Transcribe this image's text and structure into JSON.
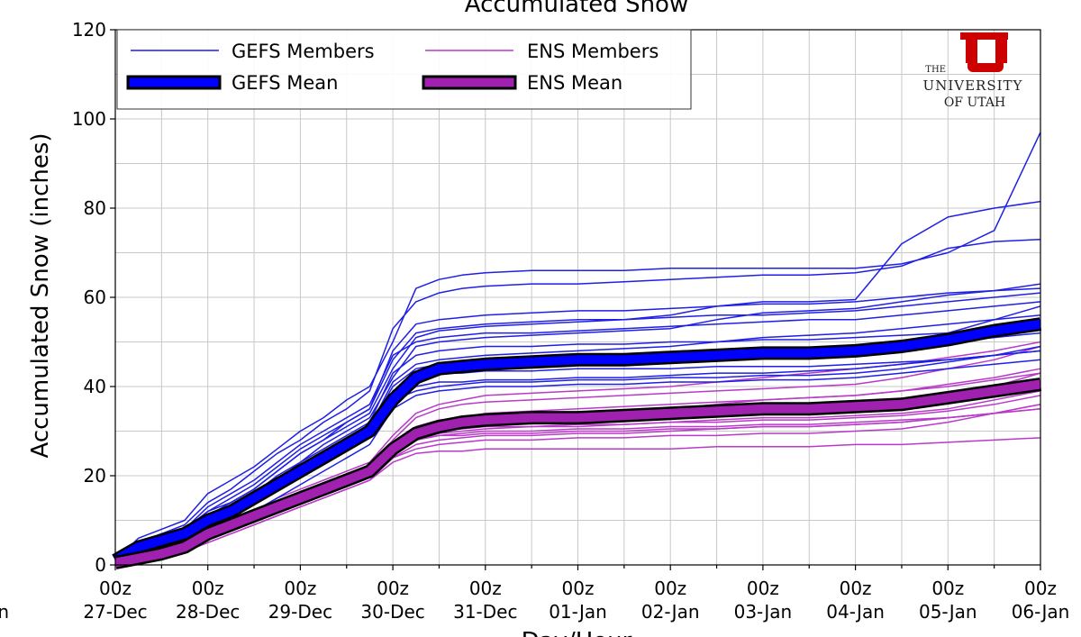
{
  "chart_data": {
    "type": "line",
    "title": "Accumulated Snow",
    "xlabel": "Day/Hour",
    "ylabel": "Accumulated Snow (inches)",
    "ylim": [
      0,
      120
    ],
    "xlim": [
      0,
      10
    ],
    "y_ticks": [
      "0",
      "20",
      "40",
      "60",
      "80",
      "100",
      "120"
    ],
    "x_tick_hour_labels": [
      "00z",
      "00z",
      "00z",
      "00z",
      "00z",
      "00z",
      "00z",
      "00z",
      "00z",
      "00z",
      "00z"
    ],
    "x_tick_date_labels": [
      "27-Dec",
      "28-Dec",
      "29-Dec",
      "30-Dec",
      "31-Dec",
      "01-Jan",
      "02-Jan",
      "03-Jan",
      "04-Jan",
      "05-Jan",
      "06-Jan"
    ],
    "left_cut_label": "n",
    "grid": true,
    "legend_position": "top-left",
    "legend": [
      {
        "label": "GEFS Members",
        "kind": "thin",
        "color": "#1f1fe6"
      },
      {
        "label": "ENS Members",
        "kind": "thin",
        "color": "#b93ac9"
      },
      {
        "label": "GEFS Mean",
        "kind": "thick",
        "color": "#0000ff"
      },
      {
        "label": "ENS Mean",
        "kind": "thick",
        "color": "#a020b0"
      }
    ],
    "x": [
      0,
      0.25,
      0.5,
      0.75,
      1,
      1.25,
      1.5,
      1.75,
      2,
      2.25,
      2.5,
      2.75,
      3,
      3.25,
      3.5,
      3.75,
      4,
      4.5,
      5,
      5.5,
      6,
      6.5,
      7,
      7.5,
      8,
      8.5,
      9,
      9.5,
      10
    ],
    "series": [
      {
        "name": "GEFS Mean",
        "color": "#0000ff",
        "values": [
          1,
          4,
          5.5,
          7,
          10,
          12,
          15,
          18,
          21,
          24,
          27,
          30,
          37,
          42,
          44,
          44.5,
          45,
          45.5,
          46,
          46,
          46.5,
          47,
          47.5,
          47.5,
          48,
          49,
          50.5,
          52.5,
          54
        ]
      },
      {
        "name": "ENS Mean",
        "color": "#a020b0",
        "values": [
          0.5,
          1.5,
          2.5,
          4,
          7,
          9,
          11,
          13,
          15,
          17,
          19,
          21,
          26,
          29.5,
          31,
          32,
          32.5,
          33,
          33,
          33.5,
          34,
          34.5,
          35,
          35,
          35.5,
          36,
          37.5,
          39,
          40.5
        ]
      }
    ],
    "members": {
      "gefs_color": "#1f1fe6",
      "ens_color": "#b93ac9",
      "gefs": [
        [
          1,
          5,
          7,
          8,
          12,
          14,
          17,
          21,
          25,
          28,
          32,
          35,
          48,
          54,
          55,
          55.5,
          56,
          56.5,
          57,
          57,
          57.5,
          58,
          58.5,
          58.5,
          59,
          60,
          61,
          61.5,
          62
        ],
        [
          1,
          4,
          6,
          7,
          11,
          13,
          16,
          19,
          23,
          26,
          29,
          32,
          43,
          47,
          48,
          48.5,
          49,
          49,
          49.5,
          49.5,
          50,
          50,
          50.5,
          50.5,
          51,
          51.5,
          52,
          52.5,
          53
        ],
        [
          1,
          3,
          5,
          6,
          9,
          11,
          14,
          17,
          20,
          23,
          26,
          29,
          39,
          42,
          43,
          43,
          43.5,
          43.5,
          44,
          44,
          44,
          44.5,
          44.5,
          44.5,
          45,
          45.5,
          46,
          47,
          48
        ],
        [
          1,
          5,
          7,
          9,
          14,
          17,
          21,
          25,
          28,
          32,
          35,
          39,
          53,
          59,
          61,
          62,
          62.5,
          63,
          63,
          63.5,
          64,
          64.5,
          65,
          65,
          65.5,
          67,
          71,
          72.5,
          73
        ],
        [
          1,
          6,
          8,
          10,
          16,
          19,
          22,
          26,
          30,
          33,
          37,
          40,
          50,
          62,
          64,
          65,
          65.5,
          66,
          66,
          66,
          66.5,
          66.5,
          66.5,
          66.5,
          66.5,
          67.5,
          70,
          75,
          97
        ],
        [
          1,
          4,
          6,
          7,
          11,
          14,
          17,
          21,
          25,
          28,
          31,
          34,
          44,
          51,
          52.5,
          53,
          53.5,
          54,
          54.5,
          55,
          56,
          58,
          59,
          59,
          59.5,
          72,
          78,
          80,
          81.5
        ],
        [
          1,
          3,
          4,
          5,
          8,
          10,
          12,
          15,
          18,
          21,
          24,
          27,
          35,
          38,
          39,
          39.5,
          40,
          40,
          40.5,
          40.5,
          41,
          41,
          41.5,
          41.5,
          42,
          43,
          44,
          45,
          46
        ],
        [
          1,
          4,
          5,
          6,
          10,
          12,
          15,
          18,
          22,
          25,
          28,
          31,
          41,
          45,
          46,
          46.5,
          47,
          47.5,
          48,
          48.5,
          49,
          50,
          51,
          51.5,
          52,
          53,
          54,
          55,
          56
        ],
        [
          1,
          5,
          6,
          8,
          12,
          15,
          18,
          22,
          26,
          29,
          32,
          35,
          46,
          52,
          53,
          53.5,
          54,
          54.5,
          55,
          55,
          55.5,
          56,
          56,
          56.5,
          57,
          58,
          59,
          60,
          61
        ],
        [
          1,
          3,
          5,
          6,
          9,
          12,
          15,
          18,
          21,
          24,
          27,
          30,
          38,
          42,
          44,
          44.5,
          45,
          45,
          45.5,
          46,
          46.5,
          47,
          47.5,
          48,
          48.5,
          50,
          52,
          55,
          58
        ],
        [
          1,
          4,
          6,
          7,
          10,
          13,
          16,
          19,
          22,
          25,
          28,
          31,
          40,
          44,
          45,
          45.5,
          46,
          46,
          46.5,
          46.5,
          47,
          47.5,
          48,
          48,
          48.5,
          49,
          50,
          51,
          52
        ],
        [
          1,
          4,
          5,
          7,
          11,
          13,
          16,
          20,
          23,
          27,
          30,
          33,
          42,
          49,
          50,
          50.5,
          51,
          51.5,
          52,
          52.5,
          53,
          55,
          56.5,
          57,
          57.5,
          59,
          60.5,
          61.5,
          63
        ],
        [
          1,
          3,
          4,
          6,
          9,
          11,
          14,
          17,
          20,
          23,
          26,
          29,
          36,
          40,
          41,
          41,
          41.5,
          41.5,
          42,
          42,
          42.5,
          43,
          43,
          43.5,
          44,
          45,
          46,
          47,
          48
        ],
        [
          1,
          5,
          7,
          8,
          13,
          16,
          19,
          23,
          27,
          30,
          33,
          36,
          47,
          50,
          51,
          51.5,
          52,
          52,
          52.5,
          53,
          53.5,
          54,
          54.5,
          55,
          55,
          56,
          57,
          58,
          59
        ],
        [
          1,
          4,
          5,
          6,
          10,
          12,
          15,
          18,
          21,
          24,
          27,
          30,
          37,
          39,
          40,
          40.5,
          41,
          41,
          41.5,
          41.5,
          42,
          42,
          42.5,
          42.5,
          43,
          44,
          45.5,
          47,
          49
        ]
      ],
      "ens": [
        [
          0.5,
          1,
          2,
          3,
          5,
          7,
          9,
          11,
          13,
          15,
          17,
          19,
          24,
          26,
          27,
          27.5,
          28,
          28,
          28.5,
          28.5,
          29,
          29,
          29.5,
          29.5,
          30,
          30.5,
          32,
          34,
          36
        ],
        [
          0.5,
          2,
          3,
          5,
          8,
          10,
          12,
          14,
          16,
          18,
          20,
          22,
          28,
          33,
          35,
          36,
          36.5,
          37,
          37.5,
          38,
          38.5,
          39,
          39.5,
          40,
          40.5,
          42,
          44,
          46,
          49
        ],
        [
          0.5,
          1,
          2,
          3,
          6,
          8,
          10,
          12,
          14,
          16,
          18,
          20,
          25,
          28,
          29.5,
          30,
          30.5,
          31,
          31,
          31.5,
          32,
          32,
          32.5,
          32.5,
          33,
          33.5,
          34.5,
          36,
          38
        ],
        [
          0.5,
          2,
          3,
          4,
          7,
          9,
          11,
          13,
          15,
          17,
          19,
          21,
          26,
          29,
          30,
          30.5,
          31,
          31,
          31.5,
          31.5,
          32,
          32.5,
          33,
          33,
          33.5,
          34,
          35,
          37,
          39
        ],
        [
          0.5,
          1,
          2,
          3,
          5,
          7,
          9,
          11,
          13,
          15,
          17,
          19,
          23,
          25,
          25.5,
          25.5,
          26,
          26,
          26,
          26,
          26,
          26.5,
          26.5,
          26.5,
          27,
          27,
          27.5,
          28,
          28.5
        ],
        [
          0.5,
          2,
          3,
          4,
          7,
          9,
          11,
          14,
          16,
          18,
          20,
          22,
          27,
          30,
          31,
          31.5,
          32,
          32.5,
          33,
          33,
          33.5,
          34,
          34.5,
          35,
          35.5,
          36.5,
          38,
          40,
          43
        ],
        [
          0.5,
          1,
          3,
          4,
          6,
          8,
          10,
          12,
          14,
          16,
          18,
          20,
          24,
          27,
          28,
          28.5,
          29,
          29,
          29.5,
          29.5,
          30,
          30.5,
          31,
          31,
          31.5,
          32,
          33,
          34,
          35
        ],
        [
          0.5,
          2,
          3,
          5,
          8,
          10,
          12,
          15,
          17,
          19,
          21,
          23,
          29,
          34,
          36,
          37,
          38,
          38.5,
          39,
          39.5,
          40,
          41,
          42,
          43,
          44,
          45,
          46.5,
          48,
          50
        ],
        [
          0.5,
          1,
          2,
          3,
          6,
          8,
          10,
          12,
          14,
          16,
          18,
          20,
          25,
          28,
          29,
          29.5,
          30,
          30,
          30.5,
          30.5,
          31,
          31,
          31.5,
          31.5,
          32,
          32.5,
          33,
          34,
          35
        ],
        [
          0.5,
          2,
          3,
          4,
          7,
          9,
          11,
          13,
          15,
          17,
          19,
          21,
          26,
          30,
          31.5,
          32,
          33,
          33.5,
          34,
          34.5,
          35,
          36,
          37,
          37.5,
          38,
          39,
          40.5,
          42,
          44
        ],
        [
          0.5,
          1,
          2,
          4,
          6,
          8,
          10,
          12,
          14,
          16,
          18,
          20,
          25,
          28,
          29,
          29,
          29.5,
          29.5,
          30,
          30,
          30.5,
          30.5,
          31,
          31,
          31.5,
          32,
          33,
          34,
          36
        ],
        [
          0.5,
          2,
          3,
          4,
          7,
          9,
          12,
          14,
          16,
          18,
          20,
          22,
          27,
          31,
          32.5,
          33,
          34,
          34.5,
          35,
          35.5,
          36,
          36.5,
          37,
          37.5,
          38,
          39,
          40,
          41.5,
          43
        ]
      ]
    }
  },
  "logo": {
    "line1": "THE",
    "line2": "UNIVERSITY",
    "line3": "OF UTAH",
    "mark_letter": "U",
    "color": "#cc0000"
  }
}
